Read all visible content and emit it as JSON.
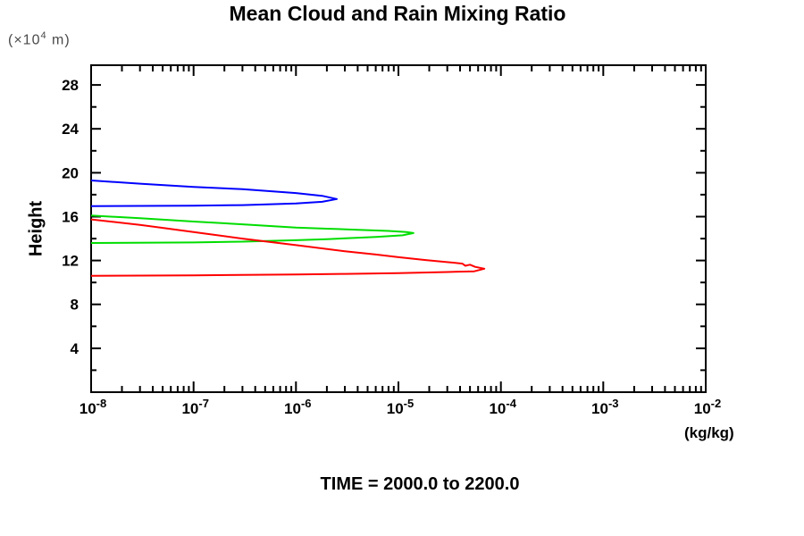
{
  "title": "Mean Cloud and Rain Mixing Ratio",
  "y_axis": {
    "label": "Height",
    "units_prefix": "(×10",
    "units_sup": "4",
    "units_suffix": " m)",
    "major_tick_labels": [
      "28",
      "24",
      "20",
      "16",
      "12",
      "8",
      "4"
    ]
  },
  "x_axis": {
    "units": "(kg/kg)",
    "base": "10",
    "decades": [
      {
        "base": "10",
        "exp": "-8"
      },
      {
        "base": "10",
        "exp": "-7"
      },
      {
        "base": "10",
        "exp": "-6"
      },
      {
        "base": "10",
        "exp": "-5"
      },
      {
        "base": "10",
        "exp": "-4"
      },
      {
        "base": "10",
        "exp": "-3"
      },
      {
        "base": "10",
        "exp": "-2"
      }
    ]
  },
  "footer": {
    "time_label": "TIME = 2000.0 to 2200.0"
  },
  "chart_data": {
    "type": "line",
    "title": "Mean Cloud and Rain Mixing Ratio",
    "xlabel": "(kg/kg)",
    "ylabel": "Height (×10^4 m)",
    "x_scale": "log",
    "xlim": [
      1e-08,
      0.01
    ],
    "ylim": [
      0,
      29.8
    ],
    "y_ticks_major": [
      4,
      8,
      12,
      16,
      20,
      24,
      28
    ],
    "y_ticks_minor": [
      2,
      6,
      10,
      14,
      18,
      22,
      26
    ],
    "grid": false,
    "legend": "none",
    "annotation": "TIME = 2000.0 to 2200.0",
    "frame_color": "#000000",
    "series": [
      {
        "name": "blue-curve",
        "color": "#0000ff",
        "points": [
          [
            1e-08,
            19.3
          ],
          [
            3e-08,
            19.0
          ],
          [
            1e-07,
            18.7
          ],
          [
            3e-07,
            18.5
          ],
          [
            1e-06,
            18.15
          ],
          [
            1.8e-06,
            17.9
          ],
          [
            2.5e-06,
            17.6
          ],
          [
            1.8e-06,
            17.35
          ],
          [
            1e-06,
            17.2
          ],
          [
            3e-07,
            17.05
          ],
          [
            1e-07,
            17.0
          ],
          [
            1e-08,
            16.95
          ]
        ]
      },
      {
        "name": "green-curve",
        "color": "#00dd00",
        "points": [
          [
            1e-08,
            16.1
          ],
          [
            3e-08,
            15.85
          ],
          [
            1e-07,
            15.55
          ],
          [
            3e-07,
            15.3
          ],
          [
            1e-06,
            15.0
          ],
          [
            2e-06,
            14.9
          ],
          [
            4e-06,
            14.8
          ],
          [
            8e-06,
            14.7
          ],
          [
            1.2e-05,
            14.6
          ],
          [
            1.4e-05,
            14.5
          ],
          [
            1.1e-05,
            14.3
          ],
          [
            6e-06,
            14.15
          ],
          [
            2e-06,
            13.95
          ],
          [
            1e-06,
            13.85
          ],
          [
            3e-07,
            13.72
          ],
          [
            1e-07,
            13.65
          ],
          [
            1e-08,
            13.6
          ]
        ]
      },
      {
        "name": "red-curve",
        "color": "#ff0000",
        "points": [
          [
            1e-08,
            15.75
          ],
          [
            3e-08,
            15.25
          ],
          [
            1e-07,
            14.6
          ],
          [
            3e-07,
            14.0
          ],
          [
            1e-06,
            13.4
          ],
          [
            3e-06,
            12.85
          ],
          [
            6e-06,
            12.55
          ],
          [
            1e-05,
            12.3
          ],
          [
            1.8e-05,
            12.05
          ],
          [
            2.6e-05,
            11.9
          ],
          [
            3.5e-05,
            11.8
          ],
          [
            4.2e-05,
            11.72
          ],
          [
            4.5e-05,
            11.52
          ],
          [
            5e-05,
            11.62
          ],
          [
            5.6e-05,
            11.42
          ],
          [
            6.9e-05,
            11.25
          ],
          [
            5.5e-05,
            11.02
          ],
          [
            3e-05,
            10.95
          ],
          [
            1e-05,
            10.85
          ],
          [
            3e-06,
            10.78
          ],
          [
            1e-06,
            10.72
          ],
          [
            1e-07,
            10.65
          ],
          [
            1e-08,
            10.6
          ]
        ]
      }
    ]
  }
}
